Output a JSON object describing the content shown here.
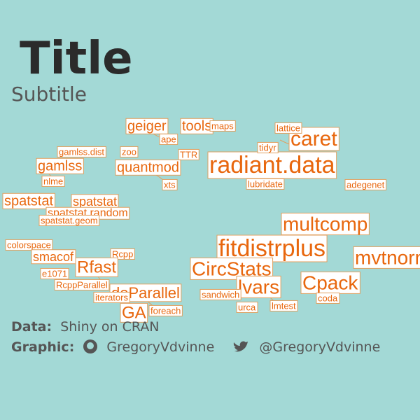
{
  "header": {
    "title": "Title",
    "subtitle": "Subtitle"
  },
  "nodes": [
    {
      "label": "geiger"
    },
    {
      "label": "tools"
    },
    {
      "label": "maps"
    },
    {
      "label": "ape"
    },
    {
      "label": "gamlss.dist"
    },
    {
      "label": "zoo"
    },
    {
      "label": "TTR"
    },
    {
      "label": "gamlss"
    },
    {
      "label": "quantmod"
    },
    {
      "label": "nlme"
    },
    {
      "label": "xts"
    },
    {
      "label": "radiant.data"
    },
    {
      "label": "caret"
    },
    {
      "label": "lattice"
    },
    {
      "label": "tidyr"
    },
    {
      "label": "lubridate"
    },
    {
      "label": "adegenet"
    },
    {
      "label": "spatstat"
    },
    {
      "label": "spatstat"
    },
    {
      "label": "spatstat.random"
    },
    {
      "label": "spatstat.geom"
    },
    {
      "label": "multcomp"
    },
    {
      "label": "fitdistrplus"
    },
    {
      "label": "CircStats"
    },
    {
      "label": "lvars"
    },
    {
      "label": "Cpack"
    },
    {
      "label": "coda"
    },
    {
      "label": "lmtest"
    },
    {
      "label": "urca"
    },
    {
      "label": "sandwich"
    },
    {
      "label": "colorspace"
    },
    {
      "label": "smacof"
    },
    {
      "label": "Rcpp"
    },
    {
      "label": "Rfast"
    },
    {
      "label": "e1071"
    },
    {
      "label": "RcppParallel"
    },
    {
      "label": "doParallel"
    },
    {
      "label": "iterators"
    },
    {
      "label": "GA"
    },
    {
      "label": "foreach"
    },
    {
      "label": "mvtnorm"
    }
  ],
  "caption": {
    "data_label": "Data:",
    "data_text": "Shiny on CRAN",
    "graphic_label": "Graphic:",
    "github": "GregoryVdvinne",
    "twitter": "@GregoryVdvinne"
  }
}
